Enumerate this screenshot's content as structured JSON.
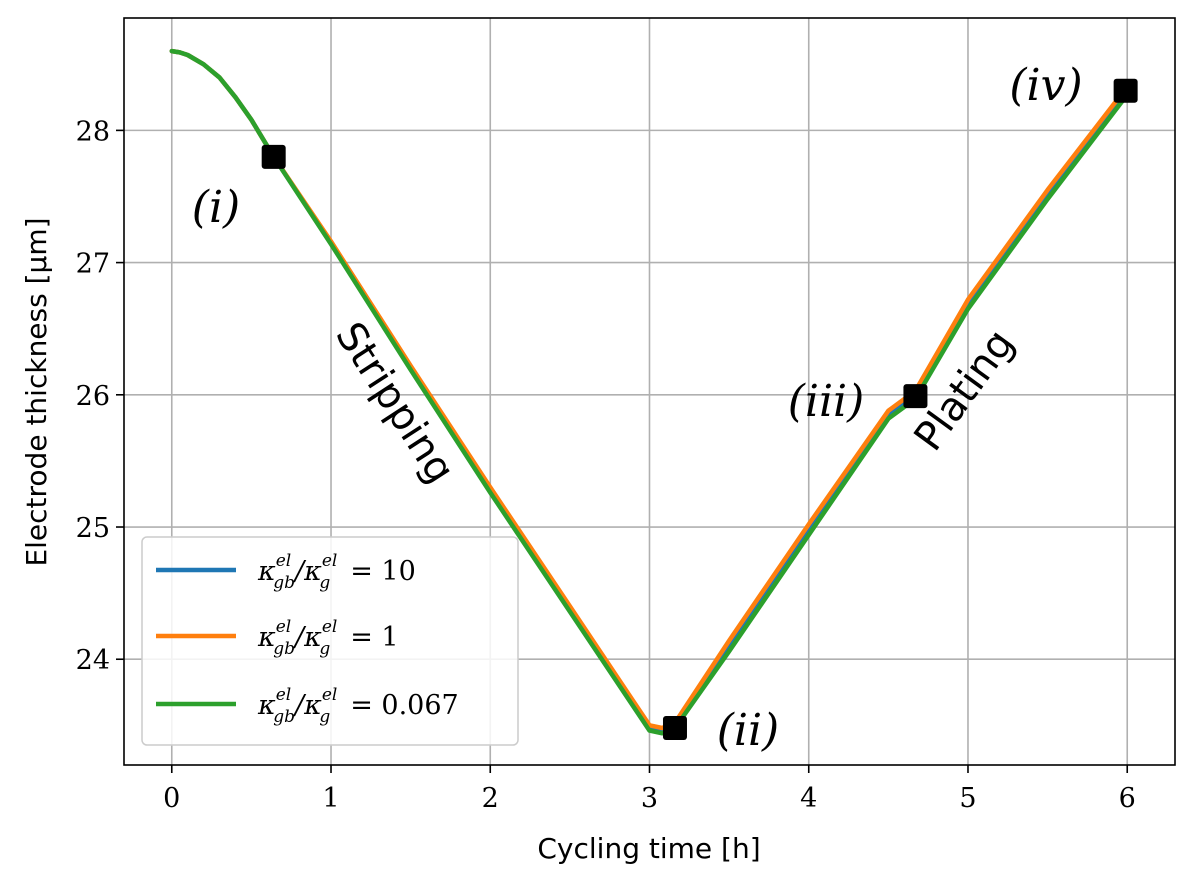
{
  "chart_data": {
    "type": "line",
    "title": "",
    "xlabel": "Cycling time [h]",
    "ylabel": "Electrode thickness [μm]",
    "xlim": [
      -0.3,
      6.3
    ],
    "ylim": [
      23.2,
      28.85
    ],
    "xticks": [
      0,
      1,
      2,
      3,
      4,
      5,
      6
    ],
    "yticks": [
      24,
      25,
      26,
      27,
      28
    ],
    "grid": true,
    "legend_position": "lower-left",
    "series": [
      {
        "name": "κ_gb^el/κ_g^el = 10",
        "label_main": "κ",
        "label_sub": "gb",
        "label_sup": "el",
        "label_den": "κ",
        "label_den_sub": "g",
        "label_den_sup": "el",
        "label_value": "= 10",
        "color": "#1f77b4",
        "x": [
          0,
          0.05,
          0.1,
          0.2,
          0.3,
          0.4,
          0.5,
          0.64,
          1.0,
          1.5,
          2.0,
          2.5,
          3.0,
          3.08,
          3.16,
          3.5,
          4.0,
          4.5,
          4.67,
          5.0,
          5.5,
          6.0
        ],
        "y": [
          28.6,
          28.59,
          28.57,
          28.5,
          28.4,
          28.25,
          28.08,
          27.8,
          27.15,
          26.2,
          25.28,
          24.38,
          23.48,
          23.46,
          23.5,
          24.1,
          24.98,
          25.85,
          26.0,
          26.68,
          27.52,
          28.3
        ]
      },
      {
        "name": "κ_gb^el/κ_g^el = 1",
        "label_main": "κ",
        "label_sub": "gb",
        "label_sup": "el",
        "label_den": "κ",
        "label_den_sub": "g",
        "label_den_sup": "el",
        "label_value": "= 1",
        "color": "#ff7f0e",
        "x": [
          0,
          0.05,
          0.1,
          0.2,
          0.3,
          0.4,
          0.5,
          0.64,
          1.0,
          1.5,
          2.0,
          2.5,
          3.0,
          3.08,
          3.16,
          3.5,
          4.0,
          4.5,
          4.67,
          5.0,
          5.5,
          6.0
        ],
        "y": [
          28.6,
          28.59,
          28.57,
          28.5,
          28.4,
          28.25,
          28.08,
          27.8,
          27.16,
          26.22,
          25.3,
          24.4,
          23.5,
          23.48,
          23.52,
          24.14,
          25.02,
          25.88,
          26.03,
          26.72,
          27.55,
          28.33
        ]
      },
      {
        "name": "κ_gb^el/κ_g^el = 0.067",
        "label_main": "κ",
        "label_sub": "gb",
        "label_sup": "el",
        "label_den": "κ",
        "label_den_sub": "g",
        "label_den_sup": "el",
        "label_value": "= 0.067",
        "color": "#2ca02c",
        "x": [
          0,
          0.05,
          0.1,
          0.2,
          0.3,
          0.4,
          0.5,
          0.64,
          1.0,
          1.5,
          2.0,
          2.5,
          3.0,
          3.08,
          3.16,
          3.5,
          4.0,
          4.5,
          4.67,
          5.0,
          5.5,
          6.0
        ],
        "y": [
          28.6,
          28.59,
          28.57,
          28.5,
          28.4,
          28.25,
          28.08,
          27.8,
          27.14,
          26.19,
          25.26,
          24.36,
          23.46,
          23.44,
          23.48,
          24.06,
          24.94,
          25.82,
          25.97,
          26.65,
          27.48,
          28.27
        ]
      }
    ],
    "markers": [
      {
        "label": "(i)",
        "x": 0.64,
        "y": 27.8
      },
      {
        "label": "(ii)",
        "x": 3.16,
        "y": 23.48
      },
      {
        "label": "(iii)",
        "x": 4.67,
        "y": 25.99
      },
      {
        "label": "(iv)",
        "x": 5.99,
        "y": 28.3
      }
    ],
    "region_labels": [
      {
        "text": "Stripping"
      },
      {
        "text": "Plating"
      }
    ]
  }
}
